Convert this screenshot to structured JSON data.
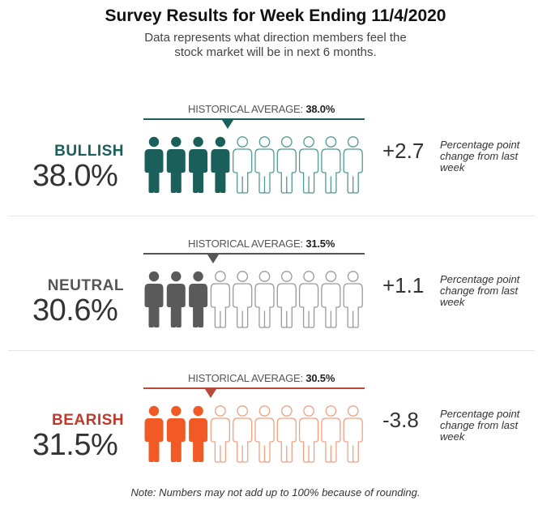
{
  "title": "Survey Results for Week Ending 11/4/2020",
  "subtitle_line1": "Data represents what direction members feel the",
  "subtitle_line2": "stock market will be in next 6 months.",
  "note": "Note: Numbers may not add up to 100% because of rounding.",
  "chart_data": {
    "type": "pictograph",
    "title": "Survey Results for Week Ending 11/4/2020",
    "icons_per_row": 10,
    "series": [
      {
        "name": "BULLISH",
        "value_label": "38.0%",
        "value": 38.0,
        "filled_icons": 4,
        "historical_label": "HISTORICAL AVERAGE:",
        "historical_value_label": "38.0%",
        "historical_value": 38.0,
        "change_label": "+2.7",
        "change": 2.7,
        "change_text": "Percentage point change from last week",
        "color": "#1a5f5a",
        "outline_color": "#4f9a94",
        "label_color": "#1a5f5a",
        "line_color": "#1a5f5a"
      },
      {
        "name": "NEUTRAL",
        "value_label": "30.6%",
        "value": 30.6,
        "filled_icons": 3,
        "historical_label": "HISTORICAL AVERAGE:",
        "historical_value_label": "31.5%",
        "historical_value": 31.5,
        "change_label": "+1.1",
        "change": 1.1,
        "change_text": "Percentage point change from last week",
        "color": "#5a5a5a",
        "outline_color": "#9a9a9a",
        "label_color": "#555555",
        "line_color": "#555555"
      },
      {
        "name": "BEARISH",
        "value_label": "31.5%",
        "value": 31.5,
        "filled_icons": 3,
        "historical_label": "HISTORICAL AVERAGE:",
        "historical_value_label": "30.5%",
        "historical_value": 30.5,
        "change_label": "-3.8",
        "change": -3.8,
        "change_text": "Percentage point change from last week",
        "color": "#f15a24",
        "outline_color": "#f3a081",
        "label_color": "#c0392b",
        "line_color": "#b94a3a"
      }
    ]
  }
}
